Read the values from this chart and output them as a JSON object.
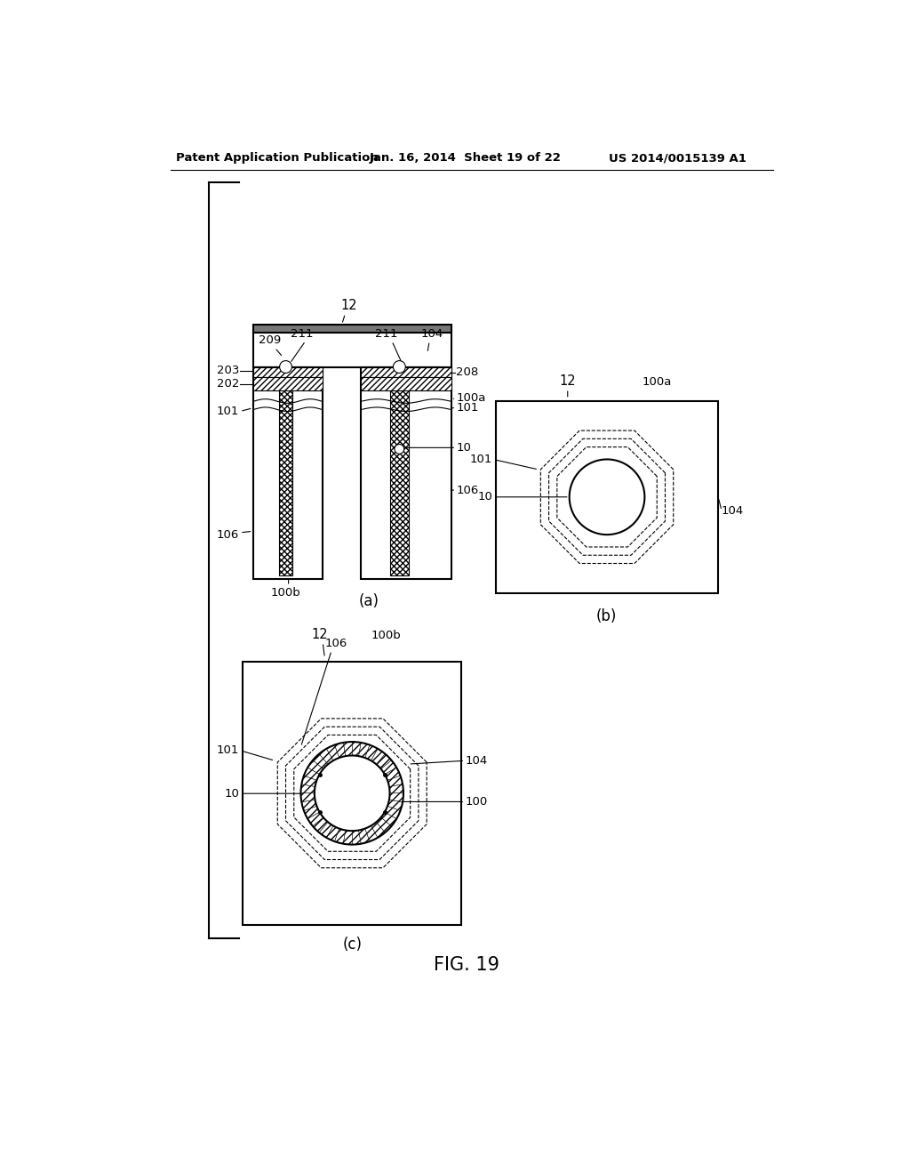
{
  "header_left": "Patent Application Publication",
  "header_mid": "Jan. 16, 2014  Sheet 19 of 22",
  "header_right": "US 2014/0015139 A1",
  "figure_label": "FIG. 19",
  "bg_color": "#ffffff",
  "line_color": "#000000"
}
